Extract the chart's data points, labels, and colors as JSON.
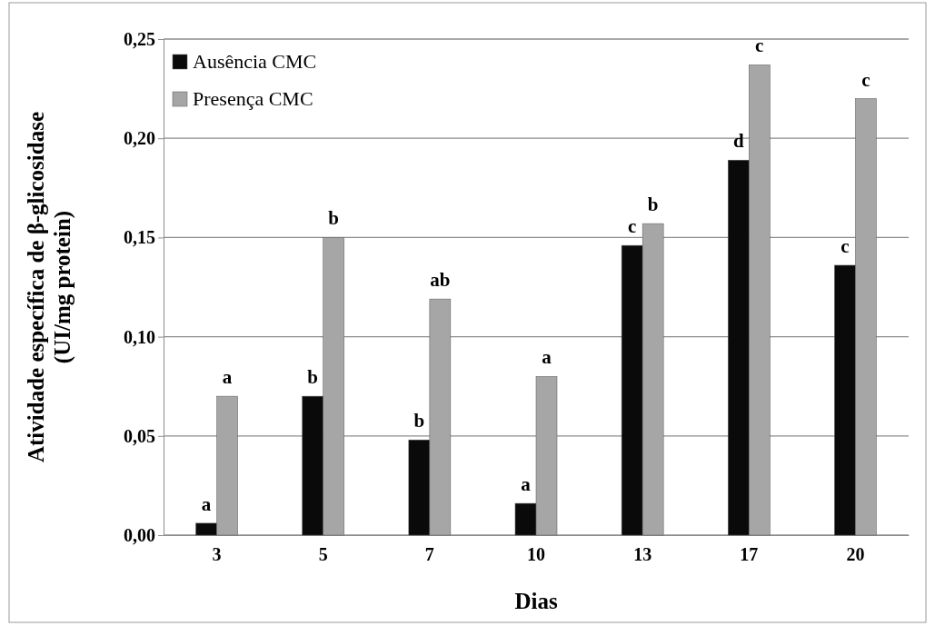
{
  "chart_data": {
    "type": "bar",
    "xlabel": "Dias",
    "ylabel": "Atividade específica de β-glicosidase\n(UI/mg protein)",
    "categories": [
      "3",
      "5",
      "7",
      "10",
      "13",
      "17",
      "20"
    ],
    "series": [
      {
        "name": "Ausência CMC",
        "color": "#0a0a0a",
        "values": [
          0.006,
          0.07,
          0.048,
          0.016,
          0.146,
          0.189,
          0.136
        ]
      },
      {
        "name": "Presença CMC",
        "color": "#a6a6a6",
        "values": [
          0.07,
          0.15,
          0.119,
          0.08,
          0.157,
          0.237,
          0.22
        ]
      }
    ],
    "ylim": [
      0,
      0.25
    ],
    "yticks": [
      {
        "value": 0,
        "label": "0,00"
      },
      {
        "value": 0.05,
        "label": "0,05"
      },
      {
        "value": 0.1,
        "label": "0,10"
      },
      {
        "value": 0.15,
        "label": "0,15"
      },
      {
        "value": 0.2,
        "label": "0,20"
      },
      {
        "value": 0.25,
        "label": "0,25"
      }
    ],
    "grid": "y",
    "legend": "top left",
    "annotations": [
      {
        "text": "a",
        "x": "3",
        "y": 0.006
      },
      {
        "text": "b",
        "x": "5",
        "y": 0.07
      },
      {
        "text": "b",
        "x": "7",
        "y": 0.048
      },
      {
        "text": "a",
        "x": "10",
        "y": 0.016
      },
      {
        "text": "c",
        "x": "13",
        "y": 0.146
      },
      {
        "text": "d",
        "x": "17",
        "y": 0.189
      },
      {
        "text": "c",
        "x": "20",
        "y": 0.136
      },
      {
        "text": "a",
        "x": "3",
        "y": 0.07
      },
      {
        "text": "b",
        "x": "5",
        "y": 0.15
      },
      {
        "text": "ab",
        "x": "7",
        "y": 0.119
      },
      {
        "text": "a",
        "x": "10",
        "y": 0.08
      },
      {
        "text": "b",
        "x": "13",
        "y": 0.157
      },
      {
        "text": "c",
        "x": "17",
        "y": 0.237
      },
      {
        "text": "c",
        "x": "20",
        "y": 0.22
      }
    ]
  }
}
